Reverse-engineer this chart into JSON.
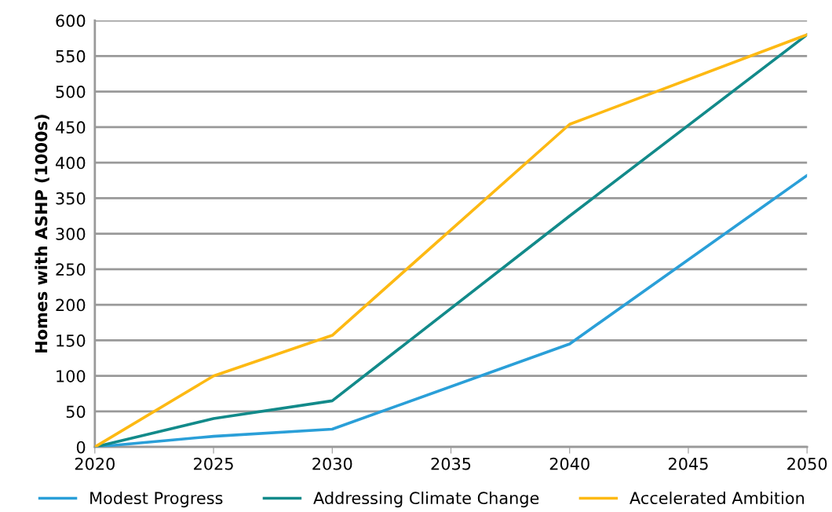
{
  "chart_data": {
    "type": "line",
    "ylabel": "Homes with ASHP (1000s)",
    "x": [
      2020,
      2025,
      2030,
      2040,
      2050
    ],
    "series": [
      {
        "name": "Modest Progress",
        "color": "#2a9fd8",
        "values": [
          0,
          15,
          25,
          145,
          382
        ]
      },
      {
        "name": "Addressing Climate Change",
        "color": "#128a8a",
        "values": [
          0,
          40,
          65,
          325,
          580
        ]
      },
      {
        "name": "Accelerated Ambition",
        "color": "#fdb913",
        "values": [
          0,
          100,
          157,
          454,
          580
        ]
      }
    ],
    "xlim": [
      2020,
      2050
    ],
    "xticks": [
      2020,
      2025,
      2030,
      2035,
      2040,
      2045,
      2050
    ],
    "ylim": [
      0,
      600
    ],
    "yticks": [
      0,
      50,
      100,
      150,
      200,
      250,
      300,
      350,
      400,
      450,
      500,
      550,
      600
    ],
    "grid": "y",
    "legend": "bottom",
    "marker": "none",
    "line_style": "solid"
  }
}
